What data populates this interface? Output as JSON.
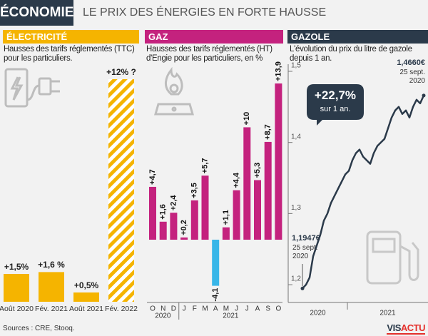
{
  "header": {
    "section": "ÉCONOMIE",
    "title": "LE PRIX DES ÉNERGIES EN FORTE HAUSSE"
  },
  "chart_data": [
    {
      "type": "bar",
      "title": "ÉLECTRICITÉ",
      "subtitle": "Hausses des tarifs réglementés (TTC) pour les particuliers.",
      "categories": [
        "Août 2020",
        "Fév. 2021",
        "Août 2021",
        "Fév. 2022"
      ],
      "values": [
        1.5,
        1.6,
        0.5,
        12
      ],
      "value_labels": [
        "+1,5%",
        "+1,6 %",
        "+0,5%",
        "+12% ?"
      ],
      "color": "#f5b400",
      "estimated": [
        false,
        false,
        false,
        true
      ]
    },
    {
      "type": "bar",
      "title": "GAZ",
      "subtitle": "Hausses des tarifs réglementés (HT) d'Engie  pour les particuliers, en %",
      "categories": [
        "O",
        "N",
        "D",
        "J",
        "F",
        "M",
        "A",
        "M",
        "J",
        "J",
        "A",
        "S",
        "O"
      ],
      "year_labels": [
        "2020",
        "2021"
      ],
      "values": [
        4.7,
        1.6,
        2.4,
        0.2,
        3.5,
        5.7,
        -4.1,
        1.1,
        4.4,
        10,
        5.3,
        8.7,
        13.9
      ],
      "value_labels": [
        "+4,7",
        "+1,6",
        "+2,4",
        "+0,2",
        "+3,5",
        "+5,7",
        "-4,1",
        "+1,1",
        "+4,4",
        "+10",
        "+5,3",
        "+8,7",
        "+13,9"
      ],
      "color": "#c4227e",
      "negative_color": "#38b6e8"
    },
    {
      "type": "line",
      "title": "GAZOLE",
      "subtitle": "L'évolution du prix du litre de gazole depuis 1 an.",
      "year_labels": [
        "2020",
        "2021"
      ],
      "values": [
        1.1947,
        1.2,
        1.21,
        1.24,
        1.255,
        1.27,
        1.29,
        1.3,
        1.315,
        1.325,
        1.335,
        1.345,
        1.355,
        1.36,
        1.375,
        1.385,
        1.39,
        1.38,
        1.375,
        1.37,
        1.385,
        1.395,
        1.4,
        1.405,
        1.42,
        1.435,
        1.445,
        1.45,
        1.44,
        1.445,
        1.435,
        1.45,
        1.46,
        1.455,
        1.466
      ],
      "color": "#2b3a4a",
      "ylim": [
        1.175,
        1.51
      ],
      "yticks": [
        {
          "value": 1.2,
          "label": "1,2"
        },
        {
          "value": 1.3,
          "label": "1,3"
        },
        {
          "value": 1.4,
          "label": "1,4"
        },
        {
          "value": 1.5,
          "label": "1,5"
        }
      ],
      "annotations": [
        {
          "value": 1.1947,
          "label": "1,1947€",
          "date": "25 sept. 2020"
        },
        {
          "value": 1.466,
          "label": "1,4660€",
          "date": "25 sept. 2020"
        }
      ],
      "callout": {
        "text": "+22,7%",
        "note": "sur 1 an."
      }
    }
  ],
  "footer": {
    "sources": "Sources : CRE, Stooq.",
    "logo": [
      "VIS",
      "ACTU"
    ]
  }
}
